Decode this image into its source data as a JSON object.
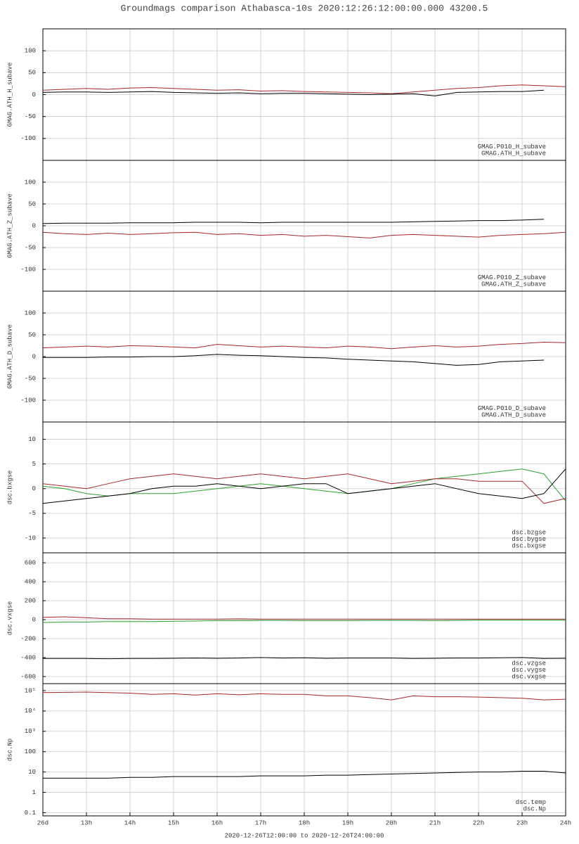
{
  "title": "Groundmags comparison Athabasca-10s 2020:12:26:12:00:00.000 43200.5",
  "x_axis": {
    "xlim": [
      12,
      24
    ],
    "xticks": [
      {
        "value": 12,
        "label": "26d"
      },
      {
        "value": 13,
        "label": "13h"
      },
      {
        "value": 14,
        "label": "14h"
      },
      {
        "value": 15,
        "label": "15h"
      },
      {
        "value": 16,
        "label": "16h"
      },
      {
        "value": 17,
        "label": "17h"
      },
      {
        "value": 18,
        "label": "18h"
      },
      {
        "value": 19,
        "label": "19h"
      },
      {
        "value": 20,
        "label": "20h"
      },
      {
        "value": 21,
        "label": "21h"
      },
      {
        "value": 22,
        "label": "22h"
      },
      {
        "value": 23,
        "label": "23h"
      },
      {
        "value": 24,
        "label": "24h"
      }
    ],
    "label": "2020-12-26T12:00:00 to 2020-12-26T24:00:00"
  },
  "chart_data": [
    {
      "type": "line",
      "ylabel": "GMAG.ATH_H_subave",
      "ylim": [
        -150,
        150
      ],
      "yticks": [
        -100,
        -50,
        0,
        50,
        100
      ],
      "grid": true,
      "log": false,
      "x": [
        12,
        12.5,
        13,
        13.5,
        14,
        14.5,
        15,
        15.5,
        16,
        16.5,
        17,
        17.5,
        18,
        18.5,
        19,
        19.5,
        20,
        20.5,
        21,
        21.5,
        22,
        22.5,
        23,
        23.5,
        24
      ],
      "series": [
        {
          "name": "GMAG.P010_H_subave",
          "color": "#a52a2a",
          "values": [
            10,
            12,
            14,
            12,
            15,
            16,
            14,
            12,
            10,
            11,
            8,
            9,
            7,
            6,
            5,
            4,
            2,
            6,
            10,
            14,
            16,
            20,
            22,
            20,
            18
          ]
        },
        {
          "name": "GMAG.ATH_H_subave",
          "color": "#000000",
          "values": [
            5,
            6,
            6,
            5,
            6,
            7,
            5,
            4,
            3,
            4,
            2,
            3,
            3,
            2,
            1,
            0,
            1,
            2,
            -3,
            5,
            6,
            7,
            7,
            10,
            null
          ]
        }
      ]
    },
    {
      "type": "line",
      "ylabel": "GMAG.ATH_Z_subave",
      "ylim": [
        -150,
        150
      ],
      "yticks": [
        -100,
        -50,
        0,
        50,
        100
      ],
      "grid": true,
      "log": false,
      "x": [
        12,
        12.5,
        13,
        13.5,
        14,
        14.5,
        15,
        15.5,
        16,
        16.5,
        17,
        17.5,
        18,
        18.5,
        19,
        19.5,
        20,
        20.5,
        21,
        21.5,
        22,
        22.5,
        23,
        23.5,
        24
      ],
      "series": [
        {
          "name": "GMAG.P010_Z_subave",
          "color": "#a52a2a",
          "values": [
            -15,
            -18,
            -20,
            -17,
            -20,
            -18,
            -16,
            -15,
            -20,
            -18,
            -22,
            -20,
            -24,
            -22,
            -25,
            -28,
            -22,
            -20,
            -22,
            -24,
            -26,
            -22,
            -20,
            -18,
            -15
          ]
        },
        {
          "name": "GMAG.ATH_Z_subave",
          "color": "#000000",
          "values": [
            5,
            6,
            6,
            6,
            7,
            7,
            7,
            8,
            8,
            8,
            7,
            8,
            8,
            8,
            8,
            8,
            8,
            9,
            10,
            11,
            12,
            12,
            13,
            15,
            null
          ]
        }
      ]
    },
    {
      "type": "line",
      "ylabel": "GMAG.ATH_D_subave",
      "ylim": [
        -150,
        150
      ],
      "yticks": [
        -100,
        -50,
        0,
        50,
        100
      ],
      "grid": true,
      "log": false,
      "x": [
        12,
        12.5,
        13,
        13.5,
        14,
        14.5,
        15,
        15.5,
        16,
        16.5,
        17,
        17.5,
        18,
        18.5,
        19,
        19.5,
        20,
        20.5,
        21,
        21.5,
        22,
        22.5,
        23,
        23.5,
        24
      ],
      "series": [
        {
          "name": "GMAG.P010_D_subave",
          "color": "#a52a2a",
          "values": [
            20,
            22,
            24,
            22,
            25,
            24,
            22,
            20,
            28,
            25,
            22,
            24,
            22,
            20,
            24,
            22,
            18,
            22,
            25,
            22,
            24,
            28,
            30,
            33,
            32
          ]
        },
        {
          "name": "GMAG.ATH_D_subave",
          "color": "#000000",
          "values": [
            -2,
            -2,
            -2,
            -1,
            -1,
            0,
            0,
            2,
            5,
            3,
            2,
            0,
            -2,
            -3,
            -6,
            -8,
            -10,
            -12,
            -16,
            -20,
            -18,
            -12,
            -10,
            -8,
            null
          ]
        }
      ]
    },
    {
      "type": "line",
      "ylabel": "dsc.bxgse",
      "ylim": [
        -13,
        13.5
      ],
      "yticks": [
        -10,
        -5,
        0,
        5,
        10
      ],
      "grid": true,
      "log": false,
      "x": [
        12,
        12.5,
        13,
        13.5,
        14,
        14.5,
        15,
        15.5,
        16,
        16.5,
        17,
        17.5,
        18,
        18.5,
        19,
        19.5,
        20,
        20.5,
        21,
        21.5,
        22,
        22.5,
        23,
        23.5,
        24
      ],
      "series": [
        {
          "name": "dsc.bzgse",
          "color": "#2ca02c",
          "values": [
            0.5,
            0,
            -1,
            -1.5,
            -1,
            -1,
            -1,
            -0.5,
            0,
            0.5,
            1,
            0.5,
            0,
            -0.5,
            -1,
            -0.5,
            0,
            1,
            2,
            2.5,
            3,
            3.5,
            4,
            3,
            -2.5
          ]
        },
        {
          "name": "dsc.bygse",
          "color": "#a52a2a",
          "values": [
            1,
            0.5,
            0,
            1,
            2,
            2.5,
            3,
            2.5,
            2,
            2.5,
            3,
            2.5,
            2,
            2.5,
            3,
            2,
            1,
            1.5,
            2,
            2,
            1.5,
            1.5,
            1.5,
            -3,
            -2
          ]
        },
        {
          "name": "dsc.bxgse",
          "color": "#000000",
          "values": [
            -3,
            -2.5,
            -2,
            -1.5,
            -1,
            0,
            0.5,
            0.5,
            1,
            0.5,
            0,
            0.5,
            1,
            1,
            -1,
            -0.5,
            0,
            0.5,
            1,
            0,
            -1,
            -1.5,
            -2,
            -1,
            4
          ]
        }
      ]
    },
    {
      "type": "line",
      "ylabel": "dsc.vxgse",
      "ylim": [
        -675,
        705
      ],
      "yticks": [
        -600,
        -400,
        -200,
        0,
        200,
        400,
        600
      ],
      "grid": true,
      "log": false,
      "x": [
        12,
        12.5,
        13,
        13.5,
        14,
        14.5,
        15,
        15.5,
        16,
        16.5,
        17,
        17.5,
        18,
        18.5,
        19,
        19.5,
        20,
        20.5,
        21,
        21.5,
        22,
        22.5,
        23,
        23.5,
        24
      ],
      "series": [
        {
          "name": "dsc.vzgse",
          "color": "#2ca02c",
          "values": [
            -30,
            -25,
            -25,
            -20,
            -20,
            -20,
            -18,
            -15,
            -10,
            -10,
            -8,
            -8,
            -10,
            -10,
            -10,
            -8,
            -8,
            -8,
            -10,
            -8,
            -6,
            -5,
            -5,
            -5,
            -5
          ]
        },
        {
          "name": "dsc.vygse",
          "color": "#a52a2a",
          "values": [
            25,
            30,
            20,
            10,
            10,
            5,
            5,
            5,
            5,
            8,
            5,
            5,
            5,
            5,
            5,
            5,
            5,
            5,
            5,
            5,
            5,
            5,
            5,
            5,
            5
          ]
        },
        {
          "name": "dsc.vxgse",
          "color": "#000000",
          "values": [
            -410,
            -410,
            -410,
            -412,
            -410,
            -410,
            -408,
            -405,
            -408,
            -405,
            -400,
            -405,
            -403,
            -408,
            -405,
            -405,
            -405,
            -410,
            -408,
            -405,
            -405,
            -402,
            -400,
            -410,
            -408
          ]
        }
      ]
    },
    {
      "type": "line",
      "ylabel": "dsc.Np",
      "ylim": [
        0.07,
        220000
      ],
      "log": true,
      "grid": true,
      "yticks": [
        {
          "value": 0.1,
          "label": "0.1"
        },
        1,
        10,
        100,
        {
          "value": 1000,
          "label": "10³"
        },
        {
          "value": 10000,
          "label": "10⁴"
        },
        {
          "value": 100000,
          "label": "10⁵"
        }
      ],
      "x": [
        12,
        12.5,
        13,
        13.5,
        14,
        14.5,
        15,
        15.5,
        16,
        16.5,
        17,
        17.5,
        18,
        18.5,
        19,
        19.5,
        20,
        20.5,
        21,
        21.5,
        22,
        22.5,
        23,
        23.5,
        24
      ],
      "series": [
        {
          "name": "dsc.temp",
          "color": "#a52a2a",
          "values": [
            80000,
            82000,
            85000,
            80000,
            75000,
            65000,
            70000,
            60000,
            70000,
            62000,
            70000,
            65000,
            65000,
            55000,
            55000,
            45000,
            35000,
            55000,
            50000,
            50000,
            48000,
            45000,
            42000,
            35000,
            38000
          ]
        },
        {
          "name": "dsc.Np",
          "color": "#000000",
          "values": [
            5,
            5,
            5,
            5,
            5.5,
            5.5,
            6,
            6,
            6,
            6,
            6.5,
            6.5,
            6.5,
            7,
            7,
            7.5,
            8,
            8.5,
            9,
            9.5,
            10,
            10,
            11,
            11,
            9
          ]
        }
      ]
    }
  ]
}
